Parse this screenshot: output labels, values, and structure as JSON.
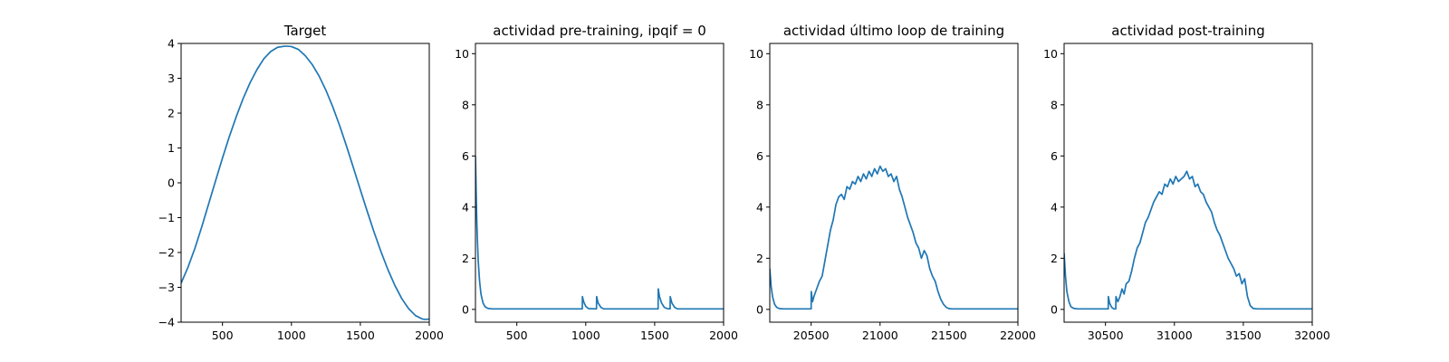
{
  "chart_data": [
    {
      "type": "line",
      "title": "Target",
      "xlim": [
        200,
        2000
      ],
      "ylim": [
        -4,
        4
      ],
      "xticks": [
        500,
        1000,
        1500,
        2000
      ],
      "yticks": [
        -4,
        -3,
        -2,
        -1,
        0,
        1,
        2,
        3,
        4
      ],
      "color": "#1f77b4",
      "series": [
        {
          "x": [
            200,
            250,
            300,
            350,
            400,
            450,
            500,
            550,
            600,
            650,
            700,
            750,
            800,
            850,
            900,
            950,
            970,
            1000,
            1050,
            1100,
            1150,
            1200,
            1250,
            1300,
            1350,
            1400,
            1450,
            1500,
            1550,
            1600,
            1650,
            1700,
            1750,
            1800,
            1850,
            1900,
            1950,
            1970,
            2000
          ],
          "y": [
            -2.88,
            -2.42,
            -1.88,
            -1.26,
            -0.6,
            0.06,
            0.71,
            1.33,
            1.9,
            2.42,
            2.87,
            3.25,
            3.56,
            3.77,
            3.89,
            3.92,
            3.92,
            3.91,
            3.83,
            3.65,
            3.4,
            3.07,
            2.66,
            2.18,
            1.64,
            1.05,
            0.43,
            -0.2,
            -0.82,
            -1.42,
            -1.98,
            -2.49,
            -2.94,
            -3.32,
            -3.61,
            -3.81,
            -3.91,
            -3.92,
            -3.91
          ]
        }
      ]
    },
    {
      "type": "line",
      "title": "actividad pre-training, ipqif = 0",
      "xlim": [
        200,
        2000
      ],
      "ylim": [
        -0.5,
        10.4
      ],
      "xticks": [
        500,
        1000,
        1500,
        2000
      ],
      "yticks": [
        0,
        2,
        4,
        6,
        8,
        10
      ],
      "color": "#1f77b4",
      "series": [
        {
          "x": [
            200,
            205,
            210,
            215,
            220,
            230,
            240,
            255,
            270,
            290,
            320,
            400,
            600,
            800,
            975,
            976,
            985,
            1000,
            1020,
            1078,
            1079,
            1090,
            1110,
            1130,
            1300,
            1525,
            1526,
            1535,
            1550,
            1570,
            1590,
            1612,
            1613,
            1625,
            1645,
            1665,
            1800,
            2000
          ],
          "y": [
            6.0,
            4.6,
            3.4,
            2.6,
            1.9,
            1.1,
            0.6,
            0.25,
            0.1,
            0.04,
            0.02,
            0.02,
            0.02,
            0.02,
            0.02,
            0.5,
            0.3,
            0.12,
            0.03,
            0.02,
            0.5,
            0.25,
            0.08,
            0.02,
            0.02,
            0.02,
            0.8,
            0.5,
            0.25,
            0.08,
            0.03,
            0.02,
            0.5,
            0.25,
            0.08,
            0.02,
            0.02,
            0.02
          ]
        }
      ]
    },
    {
      "type": "line",
      "title": "actividad último loop de training",
      "xlim": [
        20200,
        22000
      ],
      "ylim": [
        -0.5,
        10.4
      ],
      "xticks": [
        20500,
        21000,
        21500,
        22000
      ],
      "yticks": [
        0,
        2,
        4,
        6,
        8,
        10
      ],
      "color": "#1f77b4",
      "series": [
        {
          "x": [
            20200,
            20210,
            20220,
            20235,
            20250,
            20270,
            20300,
            20400,
            20500,
            20501,
            20510,
            20520,
            20540,
            20560,
            20580,
            20600,
            20620,
            20640,
            20660,
            20680,
            20700,
            20720,
            20740,
            20760,
            20780,
            20800,
            20820,
            20840,
            20860,
            20880,
            20900,
            20920,
            20940,
            20960,
            20980,
            21000,
            21020,
            21040,
            21060,
            21080,
            21100,
            21120,
            21140,
            21160,
            21180,
            21200,
            21220,
            21240,
            21260,
            21280,
            21300,
            21320,
            21340,
            21360,
            21380,
            21400,
            21420,
            21440,
            21460,
            21480,
            21500,
            21520,
            21550,
            21600,
            21800,
            22000
          ],
          "y": [
            1.6,
            0.9,
            0.5,
            0.2,
            0.08,
            0.03,
            0.02,
            0.02,
            0.02,
            0.7,
            0.3,
            0.5,
            0.8,
            1.1,
            1.3,
            1.9,
            2.5,
            3.1,
            3.5,
            4.1,
            4.4,
            4.5,
            4.3,
            4.8,
            4.7,
            5.0,
            4.9,
            5.2,
            5.0,
            5.3,
            5.1,
            5.4,
            5.2,
            5.5,
            5.3,
            5.6,
            5.4,
            5.5,
            5.2,
            5.3,
            5.0,
            5.2,
            4.7,
            4.4,
            4.0,
            3.6,
            3.3,
            3.0,
            2.6,
            2.4,
            2.0,
            2.3,
            2.1,
            1.6,
            1.3,
            1.1,
            0.7,
            0.4,
            0.2,
            0.08,
            0.03,
            0.02,
            0.02,
            0.02,
            0.02,
            0.02
          ]
        }
      ]
    },
    {
      "type": "line",
      "title": "actividad post-training",
      "xlim": [
        30200,
        32000
      ],
      "ylim": [
        -0.5,
        10.4
      ],
      "xticks": [
        30500,
        31000,
        31500,
        32000
      ],
      "yticks": [
        0,
        2,
        4,
        6,
        8,
        10
      ],
      "color": "#1f77b4",
      "series": [
        {
          "x": [
            30200,
            30210,
            30220,
            30235,
            30250,
            30270,
            30300,
            30400,
            30520,
            30521,
            30530,
            30545,
            30560,
            30575,
            30576,
            30590,
            30605,
            30620,
            30635,
            30650,
            30670,
            30690,
            30710,
            30730,
            30750,
            30770,
            30790,
            30810,
            30830,
            30850,
            30870,
            30890,
            30910,
            30930,
            30950,
            30970,
            30990,
            31010,
            31030,
            31050,
            31070,
            31090,
            31110,
            31130,
            31150,
            31170,
            31190,
            31210,
            31230,
            31250,
            31270,
            31290,
            31310,
            31330,
            31350,
            31370,
            31390,
            31410,
            31430,
            31450,
            31470,
            31490,
            31510,
            31530,
            31550,
            31570,
            31600,
            31800,
            32000
          ],
          "y": [
            2.2,
            1.3,
            0.7,
            0.3,
            0.1,
            0.04,
            0.02,
            0.02,
            0.02,
            0.5,
            0.25,
            0.08,
            0.02,
            0.02,
            0.5,
            0.3,
            0.5,
            0.8,
            0.6,
            1.0,
            1.1,
            1.5,
            2.0,
            2.4,
            2.6,
            3.0,
            3.4,
            3.6,
            3.9,
            4.2,
            4.4,
            4.6,
            4.5,
            4.9,
            4.8,
            5.1,
            4.9,
            5.2,
            5.0,
            5.1,
            5.2,
            5.4,
            5.1,
            5.2,
            4.8,
            4.9,
            4.6,
            4.5,
            4.2,
            4.0,
            3.8,
            3.4,
            3.1,
            2.9,
            2.6,
            2.3,
            2.0,
            1.8,
            1.6,
            1.3,
            1.4,
            1.0,
            1.2,
            0.5,
            0.15,
            0.04,
            0.02,
            0.02,
            0.02
          ]
        }
      ]
    }
  ]
}
